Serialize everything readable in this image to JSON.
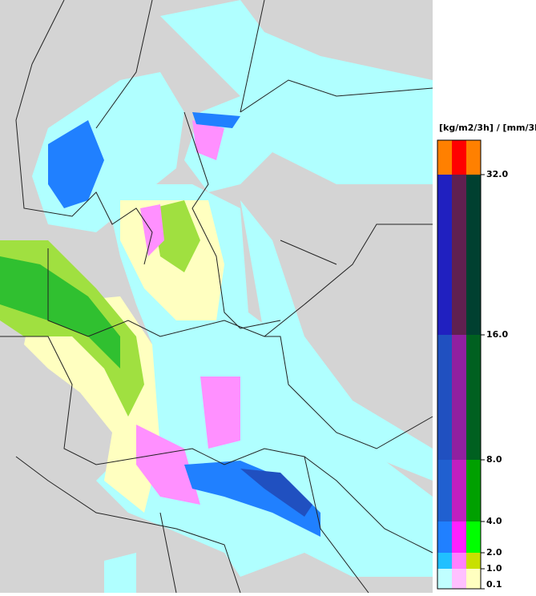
{
  "legend": {
    "title": "[kg/m2/3h] / [mm/3h]",
    "ticks": [
      "0.1",
      "1.0",
      "2.0",
      "4.0",
      "8.0",
      "16.0",
      "32.0"
    ]
  }
}
